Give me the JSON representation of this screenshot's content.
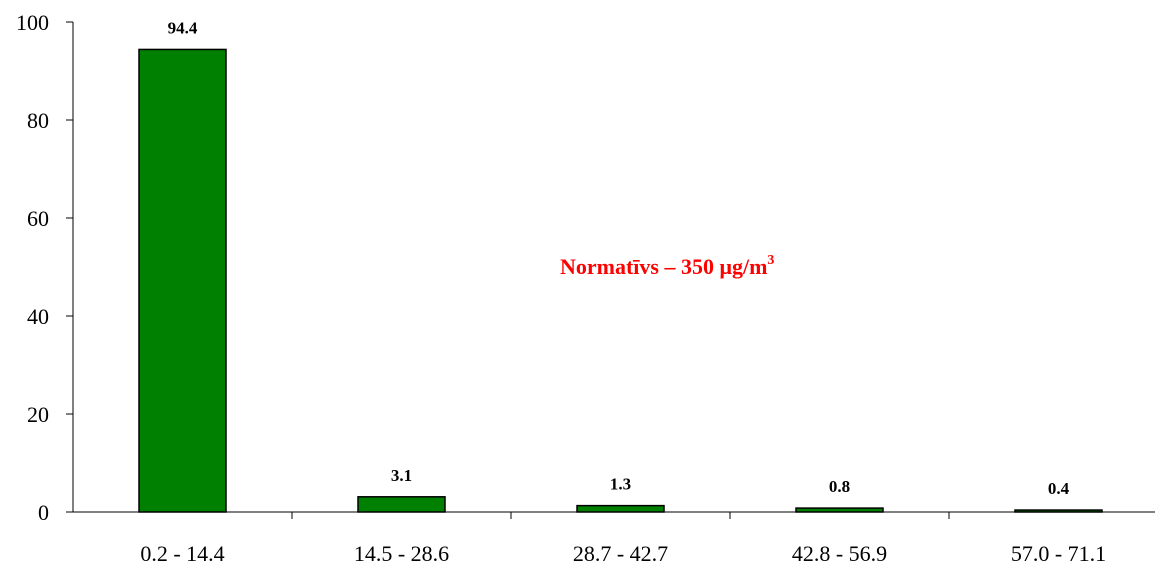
{
  "chart_data": {
    "type": "bar",
    "categories": [
      "0.2 - 14.4",
      "14.5 - 28.6",
      "28.7 - 42.7",
      "42.8 - 56.9",
      "57.0 - 71.1"
    ],
    "values": [
      94.4,
      3.1,
      1.3,
      0.8,
      0.4
    ],
    "value_labels": [
      "94.4",
      "3.1",
      "1.3",
      "0.8",
      "0.4"
    ],
    "ylim": [
      0,
      100
    ],
    "yticks": [
      0,
      20,
      40,
      60,
      80,
      100
    ],
    "ytick_labels": [
      "0",
      "20",
      "40",
      "60",
      "80",
      "100"
    ],
    "grid": false,
    "bar_color": "#008000",
    "annotation": {
      "text": "Normatīvs – 350 μg/m",
      "superscript": "3",
      "color": "#ff0000"
    }
  }
}
